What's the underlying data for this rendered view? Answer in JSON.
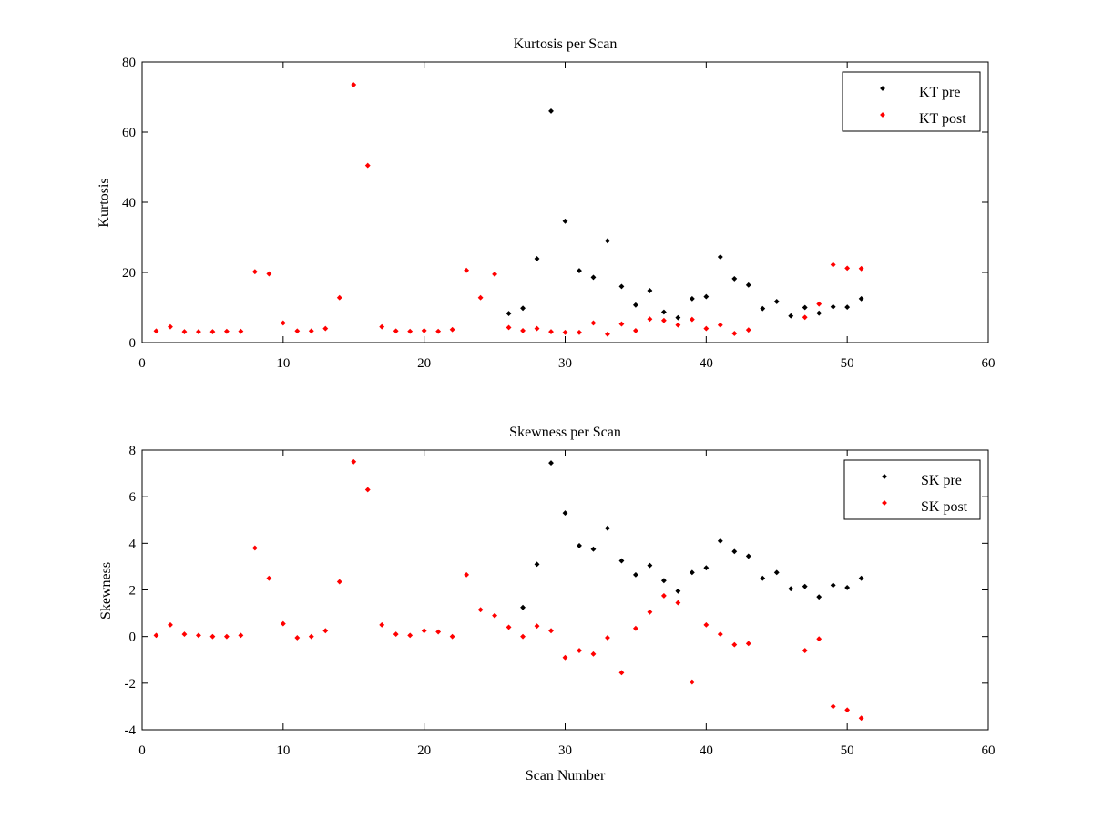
{
  "chart_data": [
    {
      "type": "scatter",
      "title": "Kurtosis per Scan",
      "xlabel": "",
      "ylabel": "Kurtosis",
      "xlim": [
        0,
        60
      ],
      "ylim": [
        0,
        80
      ],
      "xticks": [
        0,
        10,
        20,
        30,
        40,
        50,
        60
      ],
      "yticks": [
        0,
        20,
        40,
        60,
        80
      ],
      "grid": false,
      "legend_position": "top-right",
      "series": [
        {
          "name": "KT pre",
          "color": "#000000",
          "x": [
            26,
            27,
            28,
            29,
            30,
            31,
            32,
            33,
            34,
            35,
            36,
            37,
            38,
            39,
            40,
            41,
            42,
            43,
            44,
            45,
            46,
            47,
            48,
            49,
            50,
            51
          ],
          "y": [
            8.3,
            9.8,
            23.9,
            66.0,
            34.6,
            20.5,
            18.6,
            29.0,
            16.0,
            10.7,
            14.8,
            8.7,
            7.1,
            12.5,
            13.1,
            24.4,
            18.2,
            16.4,
            9.7,
            11.7,
            7.6,
            10.0,
            8.4,
            10.2,
            10.1,
            12.5
          ]
        },
        {
          "name": "KT post",
          "color": "#ff0000",
          "x": [
            1,
            2,
            3,
            4,
            5,
            6,
            7,
            8,
            9,
            10,
            11,
            12,
            13,
            14,
            15,
            16,
            17,
            18,
            19,
            20,
            21,
            22,
            23,
            24,
            25,
            26,
            27,
            28,
            29,
            30,
            31,
            32,
            33,
            34,
            35,
            36,
            37,
            38,
            39,
            40,
            41,
            42,
            43,
            47,
            48,
            49,
            50,
            51
          ],
          "y": [
            3.3,
            4.5,
            3.1,
            3.1,
            3.1,
            3.2,
            3.2,
            20.2,
            19.6,
            5.6,
            3.3,
            3.3,
            4.0,
            12.8,
            73.5,
            50.5,
            4.5,
            3.3,
            3.2,
            3.4,
            3.2,
            3.7,
            20.6,
            12.8,
            19.5,
            4.3,
            3.4,
            4.0,
            3.1,
            2.9,
            2.9,
            5.6,
            2.4,
            5.3,
            3.4,
            6.7,
            6.3,
            5.0,
            6.6,
            4.0,
            5.0,
            2.6,
            3.6,
            7.2,
            11.0,
            22.2,
            21.2,
            21.1
          ]
        }
      ]
    },
    {
      "type": "scatter",
      "title": "Skewness per Scan",
      "xlabel": "Scan Number",
      "ylabel": "Skewness",
      "xlim": [
        0,
        60
      ],
      "ylim": [
        -4,
        8
      ],
      "xticks": [
        0,
        10,
        20,
        30,
        40,
        50,
        60
      ],
      "yticks": [
        -4,
        -2,
        0,
        2,
        4,
        6,
        8
      ],
      "grid": false,
      "legend_position": "top-right",
      "series": [
        {
          "name": "SK pre",
          "color": "#000000",
          "x": [
            27,
            28,
            29,
            30,
            31,
            32,
            33,
            34,
            35,
            36,
            37,
            38,
            39,
            40,
            41,
            42,
            43,
            44,
            45,
            46,
            47,
            48,
            49,
            50,
            51
          ],
          "y": [
            1.25,
            3.1,
            7.45,
            5.3,
            3.9,
            3.75,
            4.65,
            3.25,
            2.65,
            3.05,
            2.4,
            1.95,
            2.75,
            2.95,
            4.1,
            3.65,
            3.45,
            2.5,
            2.75,
            2.05,
            2.15,
            1.7,
            2.2,
            2.1,
            2.5
          ]
        },
        {
          "name": "SK post",
          "color": "#ff0000",
          "x": [
            1,
            2,
            3,
            4,
            5,
            6,
            7,
            8,
            9,
            10,
            11,
            12,
            13,
            14,
            15,
            16,
            17,
            18,
            19,
            20,
            21,
            22,
            23,
            24,
            25,
            26,
            27,
            28,
            29,
            30,
            31,
            32,
            33,
            34,
            35,
            36,
            37,
            38,
            39,
            40,
            41,
            42,
            43,
            47,
            48,
            49,
            50,
            51
          ],
          "y": [
            0.05,
            0.5,
            0.1,
            0.05,
            0.0,
            0.0,
            0.05,
            3.8,
            2.5,
            0.55,
            -0.05,
            0.0,
            0.25,
            2.35,
            7.5,
            6.3,
            0.5,
            0.1,
            0.05,
            0.25,
            0.2,
            0.0,
            2.65,
            1.15,
            0.9,
            0.4,
            0.0,
            0.45,
            0.25,
            -0.9,
            -0.6,
            -0.75,
            -0.05,
            -1.55,
            0.35,
            1.05,
            1.75,
            1.45,
            -1.95,
            0.5,
            0.1,
            -0.35,
            -0.3,
            -0.6,
            -0.1,
            -3.0,
            -3.15,
            -3.5
          ]
        }
      ]
    }
  ]
}
